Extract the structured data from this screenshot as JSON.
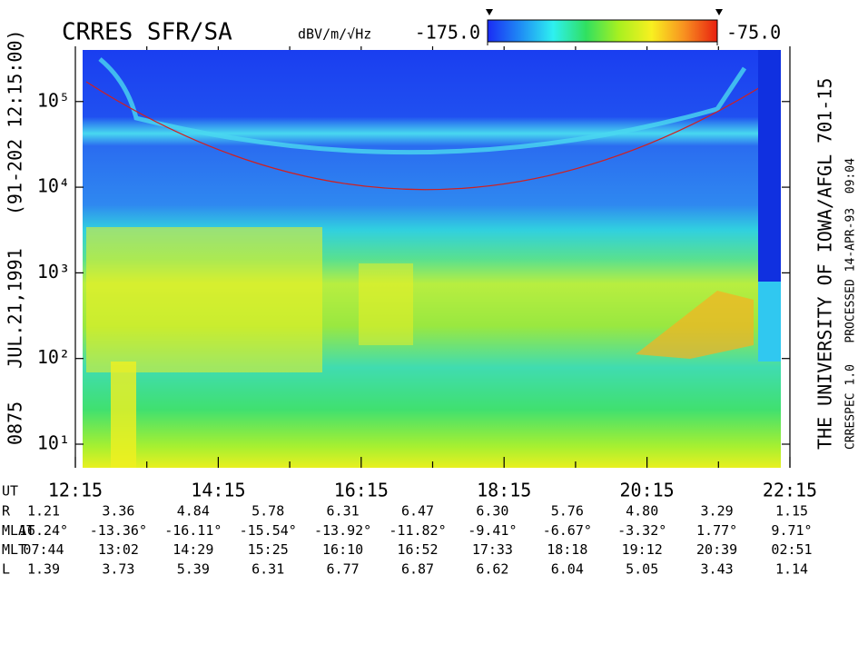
{
  "chart_data": {
    "type": "spectrogram",
    "title": "CRRES SFR/SA",
    "left_caption": "0875   JUL.21,1991   (91-202 12:15:00)",
    "right_caption": "THE UNIVERSITY OF IOWA/AFGL 701-15",
    "right_subcaption": "CRRESPEC 1.0   PROCESSED 14-APR-93  09:04",
    "colorbar": {
      "label": "dBV/m/√Hz",
      "lim": [
        -175,
        -75
      ],
      "ticks": [
        {
          "value": -175,
          "label": "-175.0"
        },
        {
          "value": -75,
          "label": "-75.0"
        }
      ],
      "colormap": [
        "#1a2cf5",
        "#1f8cf5",
        "#2ef0f0",
        "#30e060",
        "#a8f020",
        "#f8f020",
        "#f89020",
        "#e82010"
      ]
    },
    "log_y": true,
    "ylim": [
      5.3,
      400000
    ],
    "yticks": [
      {
        "value": 10,
        "label": "10¹"
      },
      {
        "value": 100,
        "label": "10²"
      },
      {
        "value": 1000,
        "label": "10³"
      },
      {
        "value": 10000,
        "label": "10⁴"
      },
      {
        "value": 100000,
        "label": "10⁵"
      }
    ],
    "x_label": "UT",
    "categories": [
      "12:15",
      null,
      "14:15",
      null,
      "16:15",
      null,
      "18:15",
      null,
      "20:15",
      null,
      "22:15"
    ],
    "ephemeris": [
      {
        "label": "R",
        "values": [
          "1.21",
          "3.36",
          "4.84",
          "5.78",
          "6.31",
          "6.47",
          "6.30",
          "5.76",
          "4.80",
          "3.29",
          "1.15"
        ]
      },
      {
        "label": "MLAT",
        "values": [
          "16.24°",
          "-13.36°",
          "-16.11°",
          "-15.54°",
          "-13.92°",
          "-11.82°",
          "-9.41°",
          "-6.67°",
          "-3.32°",
          "1.77°",
          "9.71°"
        ]
      },
      {
        "label": "MLT",
        "values": [
          "07:44",
          "13:02",
          "14:29",
          "15:25",
          "16:10",
          "16:52",
          "17:33",
          "18:18",
          "19:12",
          "20:39",
          "02:51"
        ]
      },
      {
        "label": "L",
        "values": [
          "1.39",
          "3.73",
          "5.39",
          "6.31",
          "6.77",
          "6.87",
          "6.62",
          "6.04",
          "5.05",
          "3.43",
          "1.14"
        ]
      }
    ]
  }
}
